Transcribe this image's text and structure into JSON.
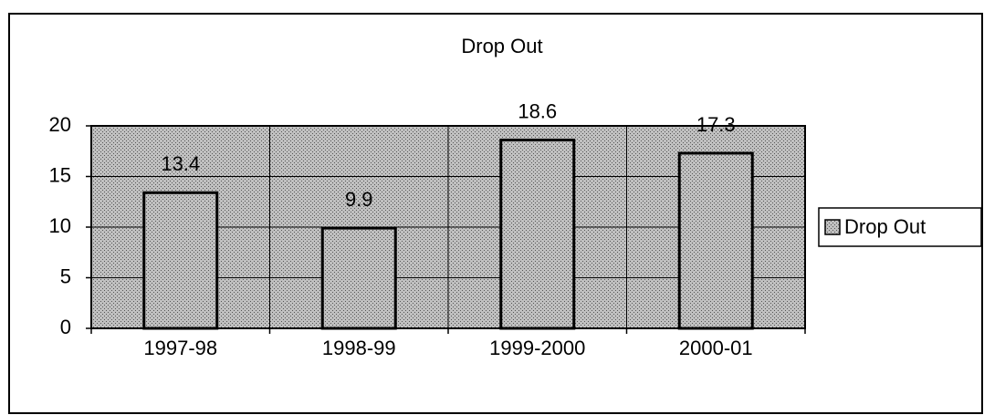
{
  "chart_data": {
    "type": "bar",
    "title": "Drop Out",
    "categories": [
      "1997-98",
      "1998-99",
      "1999-2000",
      "2000-01"
    ],
    "series": [
      {
        "name": "Drop Out",
        "color": "#c0c0c0",
        "values": [
          13.4,
          9.9,
          18.6,
          17.3
        ]
      }
    ],
    "ylim": [
      0,
      20
    ],
    "yticks": [
      0,
      5,
      10,
      15,
      20
    ],
    "grid": true,
    "legend": "right"
  }
}
